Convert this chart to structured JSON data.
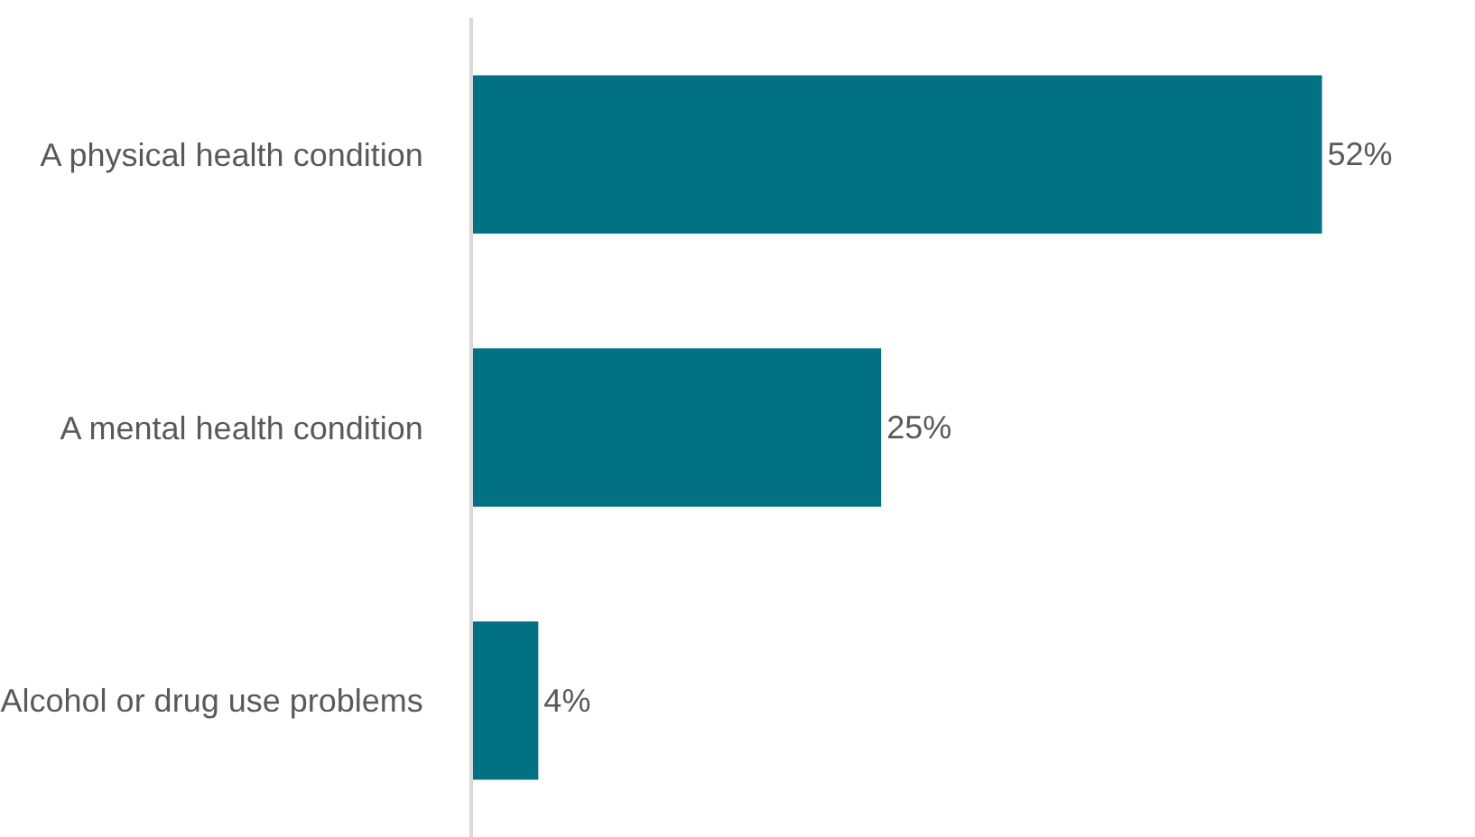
{
  "chart_data": {
    "type": "bar",
    "orientation": "horizontal",
    "categories": [
      "A physical health condition",
      "A mental health condition",
      "Alcohol or drug use problems"
    ],
    "values": [
      52,
      25,
      4
    ],
    "value_labels": [
      "52%",
      "25%",
      "4%"
    ],
    "color": "#037184",
    "tick_labels": "y"
  }
}
